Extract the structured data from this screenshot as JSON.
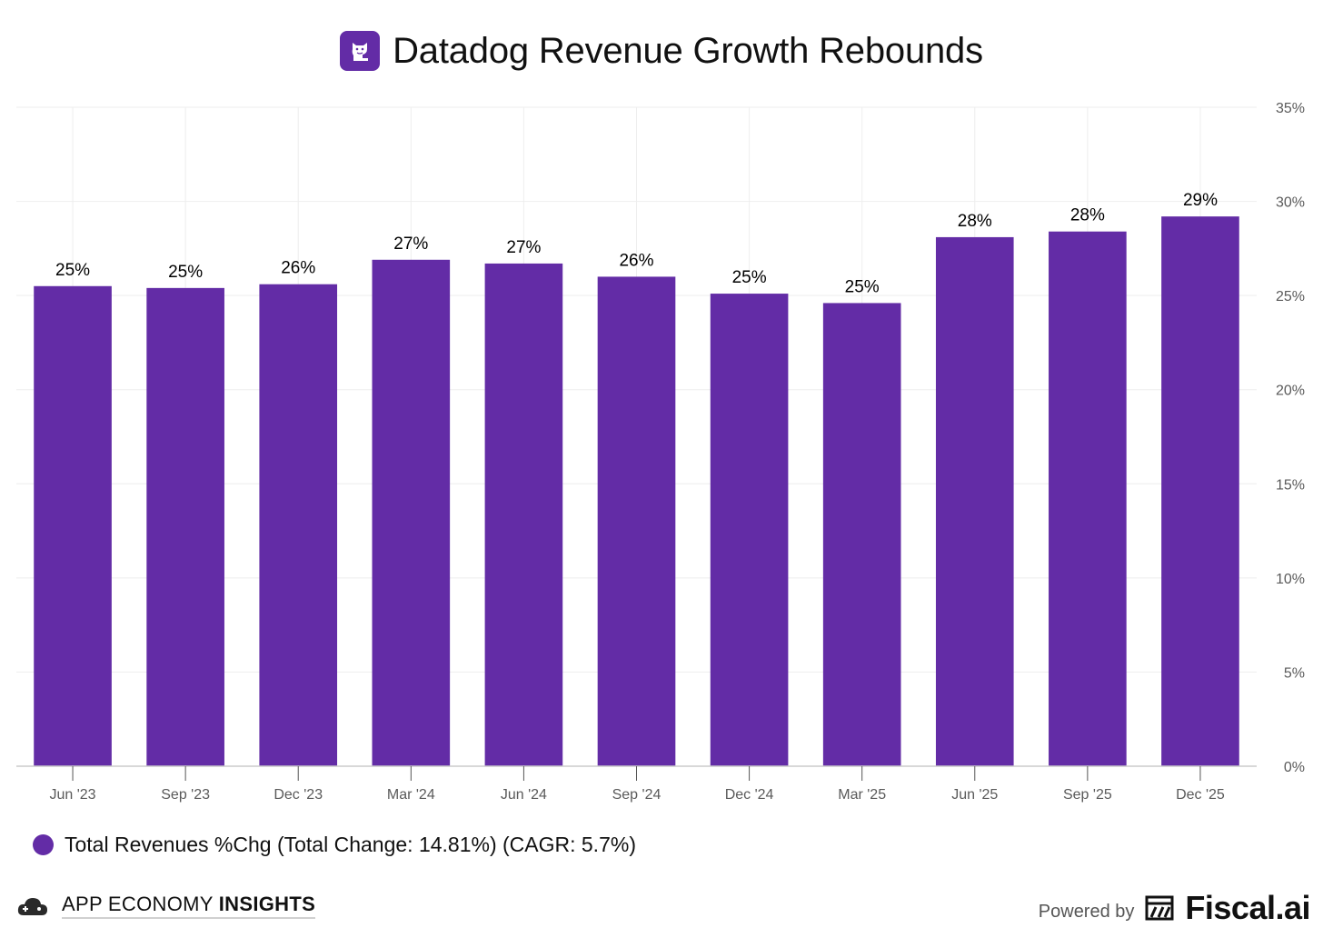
{
  "header": {
    "title": "Datadog Revenue Growth Rebounds",
    "logo_icon": "datadog-dog-icon"
  },
  "colors": {
    "bar": "#632ca6",
    "grid": "#eeeeee",
    "axis": "#cccccc"
  },
  "chart_data": {
    "type": "bar",
    "title": "Datadog Revenue Growth Rebounds",
    "categories": [
      "Jun '23",
      "Sep '23",
      "Dec '23",
      "Mar '24",
      "Jun '24",
      "Sep '24",
      "Dec '24",
      "Mar '25",
      "Jun '25",
      "Sep '25",
      "Dec '25"
    ],
    "series": [
      {
        "name": "Total Revenues %Chg (Total Change: 14.81%) (CAGR: 5.7%)",
        "values": [
          25.5,
          25.4,
          25.6,
          26.9,
          26.7,
          26.0,
          25.1,
          24.6,
          28.1,
          28.4,
          29.2
        ],
        "labels": [
          "25%",
          "25%",
          "26%",
          "27%",
          "27%",
          "26%",
          "25%",
          "25%",
          "28%",
          "28%",
          "29%"
        ]
      }
    ],
    "y_ticks": [
      "0%",
      "5%",
      "10%",
      "15%",
      "20%",
      "25%",
      "30%",
      "35%"
    ],
    "ylim": [
      0,
      35
    ],
    "xlabel": "",
    "ylabel": "",
    "y_axis_side": "right",
    "grid": true
  },
  "legend": {
    "label": "Total Revenues %Chg (Total Change: 14.81%) (CAGR: 5.7%)"
  },
  "footer": {
    "left_brand_prefix": "APP ECONOMY",
    "left_brand_bold": "INSIGHTS",
    "powered_by": "Powered by",
    "right_brand": "Fiscal.ai"
  }
}
